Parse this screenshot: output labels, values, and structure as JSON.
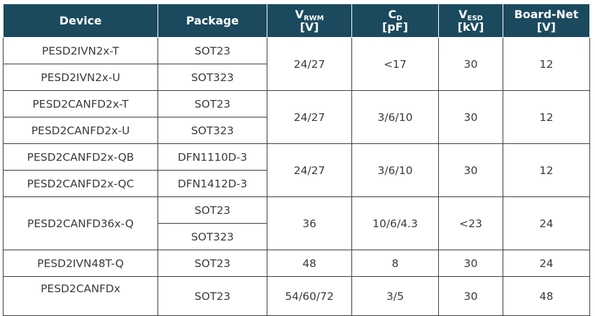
{
  "headers": {
    "device": "Device",
    "package": "Package",
    "vrwm_main": "V",
    "vrwm_sub": "RWM",
    "vrwm_unit": "[V]",
    "cd_main": "C",
    "cd_sub": "D",
    "cd_unit": "[pF]",
    "vesd_main": "V",
    "vesd_sub": "ESD",
    "vesd_unit": "[kV]",
    "boardnet_main": "Board-Net",
    "boardnet_unit": "[V]"
  },
  "rows": [
    {
      "device": "PESD2IVN2x-T",
      "package": "SOT23",
      "vrwm": "24/27",
      "cd": "<17",
      "vesd": "30",
      "boardnet": "12"
    },
    {
      "device": "PESD2IVN2x-U",
      "package": "SOT323"
    },
    {
      "device": "PESD2CANFD2x-T",
      "package": "SOT23",
      "vrwm": "24/27",
      "cd": "3/6/10",
      "vesd": "30",
      "boardnet": "12"
    },
    {
      "device": "PESD2CANFD2x-U",
      "package": "SOT323"
    },
    {
      "device": "PESD2CANFD2x-QB",
      "package": "DFN1110D-3",
      "vrwm": "24/27",
      "cd": "3/6/10",
      "vesd": "30",
      "boardnet": "12"
    },
    {
      "device": "PESD2CANFD2x-QC",
      "package": "DFN1412D-3"
    },
    {
      "device": "PESD2CANFD36x-Q",
      "package": "SOT23",
      "vrwm": "36",
      "cd": "10/6/4.3",
      "vesd": "<23",
      "boardnet": "24"
    },
    {
      "package": "SOT323"
    },
    {
      "device": "PESD2IVN48T-Q",
      "package": "SOT23",
      "vrwm": "48",
      "cd": "8",
      "vesd": "30",
      "boardnet": "24"
    },
    {
      "device": "PESD2CANFDx",
      "package": "SOT23",
      "vrwm": "54/60/72",
      "cd": "3/5",
      "vesd": "30",
      "boardnet": "48"
    }
  ]
}
